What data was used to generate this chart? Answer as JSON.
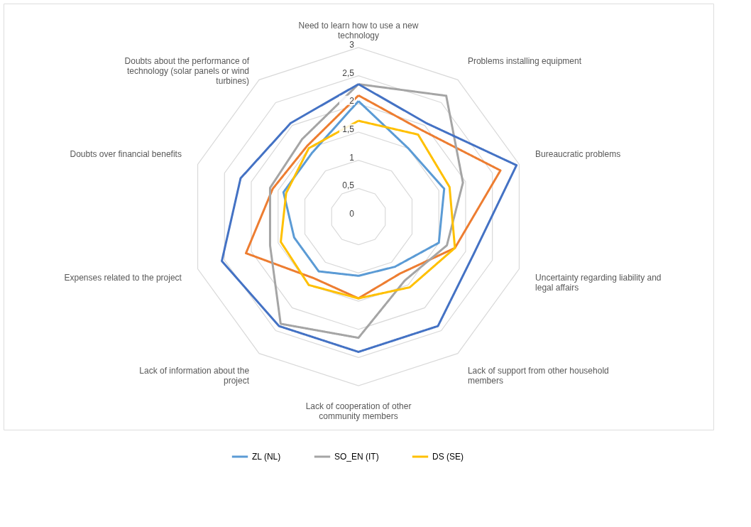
{
  "chart_data": {
    "type": "radar",
    "categories": [
      "Need to learn how to use a new technology",
      "Problems installing equipment",
      "Bureaucratic problems",
      "Uncertainty regarding liability and legal affairs",
      "Lack of support from other household members",
      "Lack of cooperation of other community members",
      "Lack of information about the project",
      "Expenses related to the project",
      "Doubts over financial benefits",
      "Doubts about the performance of technology (solar panels or wind turbines)"
    ],
    "series": [
      {
        "name": "ZL (NL)",
        "color": "#5b9bd5",
        "values": [
          2.05,
          1.5,
          1.6,
          1.5,
          1.1,
          1.05,
          1.2,
          1.2,
          1.4,
          1.4
        ]
      },
      {
        "color": "#ed7d31",
        "values": [
          2.15,
          1.9,
          2.65,
          1.8,
          1.25,
          1.45,
          1.35,
          2.1,
          1.6,
          1.55
        ]
      },
      {
        "name": "SO_EN (IT)",
        "color": "#a5a5a5",
        "values": [
          2.35,
          2.65,
          1.95,
          1.65,
          1.4,
          2.15,
          2.35,
          1.65,
          1.65,
          1.7
        ]
      },
      {
        "name": "DS (SE)",
        "color": "#ffc000",
        "values": [
          1.7,
          1.8,
          1.7,
          1.8,
          1.55,
          1.45,
          1.5,
          1.45,
          1.35,
          1.5
        ]
      },
      {
        "color": "#4472c4",
        "values": [
          2.35,
          2.05,
          2.95,
          2.15,
          2.4,
          2.4,
          2.4,
          2.55,
          2.2,
          2.05
        ]
      }
    ],
    "ylim": [
      0,
      3
    ],
    "yticks": [
      0,
      {
        "value": 0.5,
        "label": "0,5"
      },
      1,
      {
        "value": 1.5,
        "label": "1,5"
      },
      2,
      {
        "value": 2.5,
        "label": "2,5"
      },
      3
    ],
    "grid": true,
    "legend": "bottom"
  }
}
